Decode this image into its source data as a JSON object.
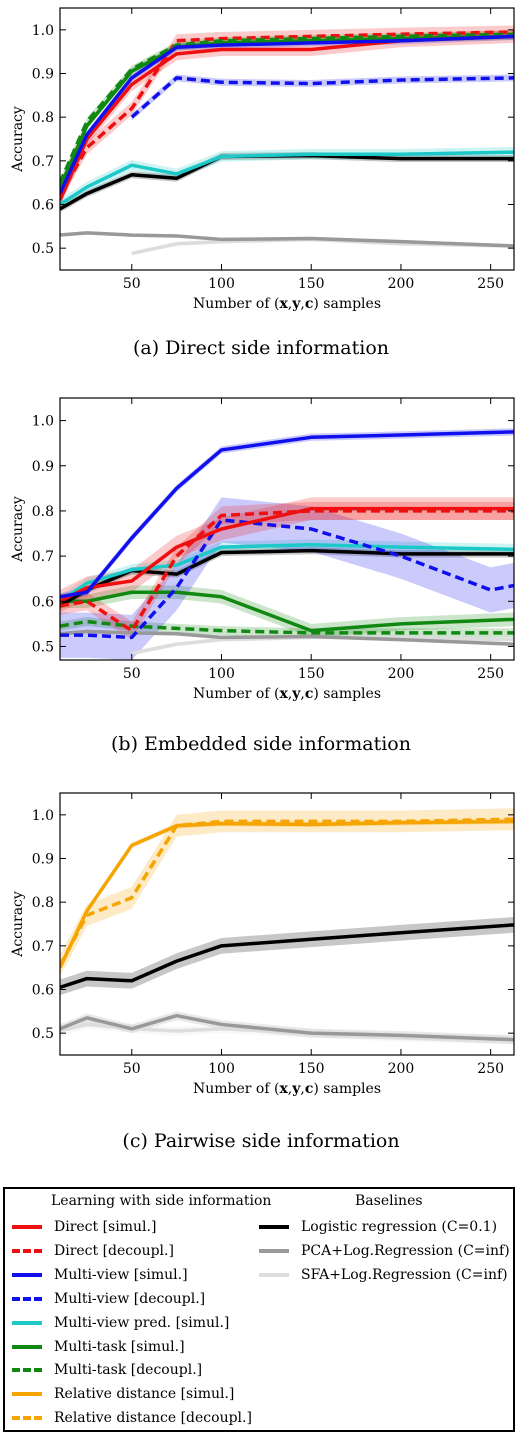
{
  "charts": [
    {
      "id": "a",
      "caption": "(a)  Direct side information",
      "chart_data": {
        "type": "line",
        "ylabel": "Accuracy",
        "xlabel": "Number of (x,y,c) samples",
        "xlim": [
          10,
          263
        ],
        "ylim": [
          0.45,
          1.05
        ],
        "xticks": [
          50,
          100,
          150,
          200,
          250
        ],
        "yticks": [
          0.5,
          0.6,
          0.7,
          0.8,
          0.9,
          1.0
        ],
        "series": [
          {
            "name": "SFA+Log.Regression (C=inf)",
            "color": "#dddddd",
            "dash": false,
            "x": [
              50,
              75,
              100,
              150,
              200,
              263
            ],
            "y": [
              0.488,
              0.51,
              0.515,
              0.52,
              0.51,
              0.505
            ],
            "band": 0.005
          },
          {
            "name": "PCA+Log.Regression (C=inf)",
            "color": "#999999",
            "dash": false,
            "x": [
              10,
              25,
              50,
              75,
              100,
              150,
              200,
              263
            ],
            "y": [
              0.53,
              0.535,
              0.53,
              0.528,
              0.52,
              0.522,
              0.515,
              0.505
            ],
            "band": 0.004
          },
          {
            "name": "Logistic regression (C=0.1)",
            "color": "#000000",
            "dash": false,
            "x": [
              10,
              25,
              50,
              75,
              100,
              150,
              200,
              263
            ],
            "y": [
              0.59,
              0.625,
              0.668,
              0.66,
              0.71,
              0.712,
              0.705,
              0.705
            ],
            "band": 0.008
          },
          {
            "name": "Multi-view pred. [simul.]",
            "color": "#1cc8c8",
            "dash": false,
            "x": [
              10,
              25,
              50,
              75,
              100,
              150,
              200,
              263
            ],
            "y": [
              0.6,
              0.64,
              0.69,
              0.67,
              0.71,
              0.715,
              0.715,
              0.72
            ],
            "band": 0.012
          },
          {
            "name": "Multi-view [decoupl.]",
            "color": "#1010ee",
            "dash": true,
            "x": [
              50,
              75,
              100,
              150,
              200,
              263
            ],
            "y": [
              0.8,
              0.89,
              0.88,
              0.877,
              0.885,
              0.89
            ],
            "band": 0.008
          },
          {
            "name": "Direct [decoupl.]",
            "color": "#ee1010",
            "dash": true,
            "x": [
              10,
              25,
              50,
              75,
              100,
              150,
              200,
              263
            ],
            "y": [
              0.62,
              0.73,
              0.82,
              0.975,
              0.98,
              0.985,
              0.99,
              0.995
            ],
            "band": 0.015
          },
          {
            "name": "Multi-task [decoupl.]",
            "color": "#118811",
            "dash": true,
            "x": [
              10,
              25,
              50,
              75,
              100,
              150,
              200,
              263
            ],
            "y": [
              0.65,
              0.79,
              0.91,
              0.965,
              0.975,
              0.98,
              0.985,
              0.99
            ],
            "band": 0.008
          },
          {
            "name": "Multi-task [simul.]",
            "color": "#118811",
            "dash": false,
            "x": [
              10,
              25,
              50,
              75,
              100,
              150,
              200,
              263
            ],
            "y": [
              0.64,
              0.78,
              0.905,
              0.96,
              0.97,
              0.975,
              0.98,
              0.985
            ],
            "band": 0.008
          },
          {
            "name": "Direct [simul.]",
            "color": "#ee1010",
            "dash": false,
            "x": [
              10,
              25,
              50,
              75,
              100,
              150,
              200,
              263
            ],
            "y": [
              0.61,
              0.75,
              0.875,
              0.945,
              0.955,
              0.955,
              0.975,
              0.985
            ],
            "band": 0.015
          },
          {
            "name": "Multi-view [simul.]",
            "color": "#1010ee",
            "dash": false,
            "x": [
              10,
              25,
              50,
              75,
              100,
              150,
              200,
              263
            ],
            "y": [
              0.625,
              0.76,
              0.89,
              0.96,
              0.965,
              0.97,
              0.975,
              0.985
            ],
            "band": 0.008
          }
        ]
      }
    },
    {
      "id": "b",
      "caption": "(b)  Embedded side information",
      "chart_data": {
        "type": "line",
        "ylabel": "Accuracy",
        "xlabel": "Number of (x,y,c) samples",
        "xlim": [
          10,
          263
        ],
        "ylim": [
          0.47,
          1.05
        ],
        "xticks": [
          50,
          100,
          150,
          200,
          250
        ],
        "yticks": [
          0.5,
          0.6,
          0.7,
          0.8,
          0.9,
          1.0
        ],
        "series": [
          {
            "name": "SFA+Log.Regression (C=inf)",
            "color": "#dddddd",
            "dash": false,
            "x": [
              50,
              75,
              100,
              150,
              200,
              263
            ],
            "y": [
              0.485,
              0.505,
              0.515,
              0.52,
              0.52,
              0.515
            ],
            "band": 0.005
          },
          {
            "name": "PCA+Log.Regression (C=inf)",
            "color": "#999999",
            "dash": false,
            "x": [
              10,
              25,
              50,
              75,
              100,
              150,
              200,
              263
            ],
            "y": [
              0.528,
              0.533,
              0.53,
              0.528,
              0.52,
              0.522,
              0.515,
              0.505
            ],
            "band": 0.004
          },
          {
            "name": "Multi-task [decoupl.]",
            "color": "#118811",
            "dash": true,
            "x": [
              10,
              25,
              50,
              75,
              100,
              150,
              200,
              263
            ],
            "y": [
              0.545,
              0.555,
              0.545,
              0.54,
              0.535,
              0.53,
              0.53,
              0.53
            ],
            "band": 0.01
          },
          {
            "name": "Multi-task [simul.]",
            "color": "#118811",
            "dash": false,
            "x": [
              10,
              25,
              50,
              75,
              100,
              150,
              200,
              263
            ],
            "y": [
              0.6,
              0.6,
              0.62,
              0.62,
              0.61,
              0.535,
              0.55,
              0.56
            ],
            "band": 0.015
          },
          {
            "name": "Logistic regression (C=0.1)",
            "color": "#000000",
            "dash": false,
            "x": [
              10,
              25,
              50,
              75,
              100,
              150,
              200,
              263
            ],
            "y": [
              0.59,
              0.625,
              0.668,
              0.66,
              0.708,
              0.712,
              0.705,
              0.705
            ],
            "band": 0.008
          },
          {
            "name": "Multi-view pred. [simul.]",
            "color": "#1cc8c8",
            "dash": false,
            "x": [
              10,
              25,
              50,
              75,
              100,
              150,
              200,
              263
            ],
            "y": [
              0.6,
              0.64,
              0.67,
              0.68,
              0.72,
              0.725,
              0.72,
              0.715
            ],
            "band": 0.012
          },
          {
            "name": "Multi-view [decoupl.]",
            "color": "#1010ee",
            "dash": true,
            "x": [
              10,
              25,
              50,
              75,
              100,
              150,
              200,
              250,
              263
            ],
            "y": [
              0.525,
              0.525,
              0.52,
              0.63,
              0.78,
              0.76,
              0.7,
              0.625,
              0.635
            ],
            "band": 0.05
          },
          {
            "name": "Direct [decoupl.]",
            "color": "#ee1010",
            "dash": true,
            "x": [
              10,
              25,
              50,
              75,
              100,
              150,
              200,
              263
            ],
            "y": [
              0.59,
              0.6,
              0.535,
              0.7,
              0.79,
              0.8,
              0.8,
              0.8
            ],
            "band": 0.02
          },
          {
            "name": "Direct [simul.]",
            "color": "#ee1010",
            "dash": false,
            "x": [
              10,
              25,
              50,
              75,
              100,
              150,
              200,
              263
            ],
            "y": [
              0.6,
              0.63,
              0.645,
              0.72,
              0.76,
              0.805,
              0.805,
              0.805
            ],
            "band": 0.025
          },
          {
            "name": "Multi-view [simul.]",
            "color": "#1010ee",
            "dash": false,
            "x": [
              10,
              25,
              50,
              75,
              100,
              150,
              200,
              263
            ],
            "y": [
              0.61,
              0.62,
              0.74,
              0.85,
              0.935,
              0.963,
              0.968,
              0.975
            ],
            "band": 0.008
          }
        ]
      }
    },
    {
      "id": "c",
      "caption": "(c)  Pairwise side information",
      "chart_data": {
        "type": "line",
        "ylabel": "Accuracy",
        "xlabel": "Number of (x,y,c) samples",
        "xlim": [
          10,
          263
        ],
        "ylim": [
          0.45,
          1.05
        ],
        "xticks": [
          50,
          100,
          150,
          200,
          250
        ],
        "yticks": [
          0.5,
          0.6,
          0.7,
          0.8,
          0.9,
          1.0
        ],
        "series": [
          {
            "name": "SFA+Log.Regression (C=inf)",
            "color": "#dddddd",
            "dash": false,
            "x": [
              10,
              25,
              50,
              75,
              100,
              150,
              200,
              263
            ],
            "y": [
              0.505,
              0.52,
              0.51,
              0.505,
              0.51,
              0.5,
              0.49,
              0.485
            ],
            "band": 0.01
          },
          {
            "name": "PCA+Log.Regression (C=inf)",
            "color": "#999999",
            "dash": false,
            "x": [
              10,
              25,
              50,
              75,
              100,
              150,
              200,
              263
            ],
            "y": [
              0.51,
              0.535,
              0.51,
              0.54,
              0.52,
              0.5,
              0.495,
              0.485
            ],
            "band": 0.01
          },
          {
            "name": "Logistic regression (C=0.1)",
            "color": "#000000",
            "dash": false,
            "x": [
              10,
              25,
              50,
              75,
              100,
              150,
              200,
              263
            ],
            "y": [
              0.605,
              0.625,
              0.62,
              0.665,
              0.7,
              0.715,
              0.73,
              0.748
            ],
            "band": 0.018
          },
          {
            "name": "Relative distance [decoupl.]",
            "color": "#f5a400",
            "dash": true,
            "x": [
              10,
              25,
              50,
              75,
              100,
              150,
              200,
              263
            ],
            "y": [
              0.655,
              0.77,
              0.81,
              0.975,
              0.985,
              0.985,
              0.985,
              0.99
            ],
            "band": 0.025
          },
          {
            "name": "Relative distance [simul.]",
            "color": "#f5a400",
            "dash": false,
            "x": [
              10,
              25,
              50,
              75,
              100,
              150,
              200,
              263
            ],
            "y": [
              0.65,
              0.78,
              0.93,
              0.975,
              0.98,
              0.978,
              0.982,
              0.985
            ],
            "band": 0.006
          }
        ]
      }
    }
  ],
  "legend": {
    "left_heading": "Learning with side information",
    "right_heading": "Baselines",
    "left_items": [
      {
        "label": "Direct [simul.]",
        "color": "#ee1010",
        "dash": false
      },
      {
        "label": "Direct [decoupl.]",
        "color": "#ee1010",
        "dash": true
      },
      {
        "label": "Multi-view [simul.]",
        "color": "#1010ee",
        "dash": false
      },
      {
        "label": "Multi-view [decoupl.]",
        "color": "#1010ee",
        "dash": true
      },
      {
        "label": "Multi-view pred. [simul.]",
        "color": "#1cc8c8",
        "dash": false
      },
      {
        "label": "Multi-task [simul.]",
        "color": "#118811",
        "dash": false
      },
      {
        "label": "Multi-task [decoupl.]",
        "color": "#118811",
        "dash": true
      },
      {
        "label": "Relative distance [simul.]",
        "color": "#f5a400",
        "dash": false
      },
      {
        "label": "Relative distance [decoupl.]",
        "color": "#f5a400",
        "dash": true
      }
    ],
    "right_items": [
      {
        "label": "Logistic regression (C=0.1)",
        "color": "#000000",
        "dash": false
      },
      {
        "label": "PCA+Log.Regression (C=inf)",
        "color": "#999999",
        "dash": false
      },
      {
        "label": "SFA+Log.Regression (C=inf)",
        "color": "#dddddd",
        "dash": false
      }
    ]
  }
}
